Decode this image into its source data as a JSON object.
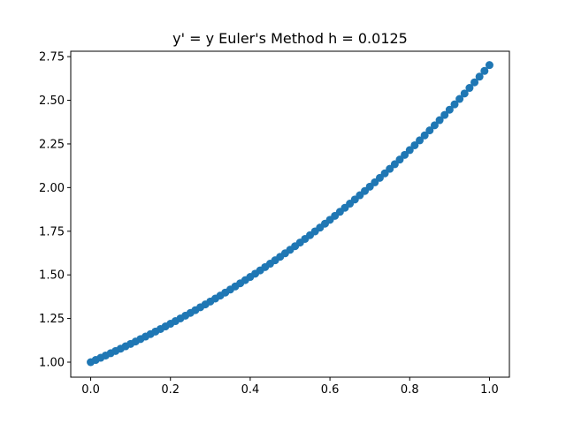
{
  "chart_data": {
    "type": "scatter",
    "title": "y' = y Euler's Method h = 0.0125",
    "xlabel": "",
    "ylabel": "",
    "xlim": [
      -0.05,
      1.05
    ],
    "ylim": [
      0.914,
      2.781
    ],
    "grid": false,
    "x_ticks": [
      0.0,
      0.2,
      0.4,
      0.6,
      0.8,
      1.0
    ],
    "x_tick_labels": [
      "0.0",
      "0.2",
      "0.4",
      "0.6",
      "0.8",
      "1.0"
    ],
    "y_ticks": [
      1.0,
      1.25,
      1.5,
      1.75,
      2.0,
      2.25,
      2.5,
      2.75
    ],
    "y_tick_labels": [
      "1.00",
      "1.25",
      "1.50",
      "1.75",
      "2.00",
      "2.25",
      "2.50",
      "2.75"
    ],
    "series": [
      {
        "color": "#1f77b4",
        "x": [
          0.0,
          0.0125,
          0.025,
          0.0375,
          0.05,
          0.0625,
          0.075,
          0.0875,
          0.1,
          0.1125,
          0.125,
          0.1375,
          0.15,
          0.1625,
          0.175,
          0.1875,
          0.2,
          0.2125,
          0.225,
          0.2375,
          0.25,
          0.2625,
          0.275,
          0.2875,
          0.3,
          0.3125,
          0.325,
          0.3375,
          0.35,
          0.3625,
          0.375,
          0.3875,
          0.4,
          0.4125,
          0.425,
          0.4375,
          0.45,
          0.4625,
          0.475,
          0.4875,
          0.5,
          0.5125,
          0.525,
          0.5375,
          0.55,
          0.5625,
          0.575,
          0.5875,
          0.6,
          0.6125,
          0.625,
          0.6375,
          0.65,
          0.6625,
          0.675,
          0.6875,
          0.7,
          0.7125,
          0.725,
          0.7375,
          0.75,
          0.7625,
          0.775,
          0.7875,
          0.8,
          0.8125,
          0.825,
          0.8375,
          0.85,
          0.8625,
          0.875,
          0.8875,
          0.9,
          0.9125,
          0.925,
          0.9375,
          0.95,
          0.9625,
          0.975,
          0.9875,
          1.0
        ],
        "y": [
          1.0,
          1.0125,
          1.0252,
          1.038,
          1.051,
          1.0641,
          1.0774,
          1.0909,
          1.1045,
          1.1183,
          1.1323,
          1.1465,
          1.1608,
          1.1753,
          1.19,
          1.2049,
          1.22,
          1.2352,
          1.2507,
          1.2663,
          1.2821,
          1.2982,
          1.3144,
          1.3308,
          1.3475,
          1.3643,
          1.3814,
          1.3986,
          1.4161,
          1.4338,
          1.4517,
          1.4699,
          1.4882,
          1.5068,
          1.5257,
          1.5447,
          1.564,
          1.5836,
          1.6034,
          1.6234,
          1.6437,
          1.6643,
          1.6851,
          1.7061,
          1.7275,
          1.749,
          1.7709,
          1.7931,
          1.8155,
          1.8382,
          1.8611,
          1.8844,
          1.908,
          1.9318,
          1.956,
          1.9804,
          2.0052,
          2.0302,
          2.0556,
          2.0813,
          2.1073,
          2.1337,
          2.1603,
          2.1873,
          2.2147,
          2.2424,
          2.2704,
          2.2988,
          2.3275,
          2.3566,
          2.3861,
          2.4159,
          2.4461,
          2.4767,
          2.5076,
          2.539,
          2.5707,
          2.6028,
          2.6354,
          2.6683,
          2.7017
        ]
      }
    ]
  }
}
